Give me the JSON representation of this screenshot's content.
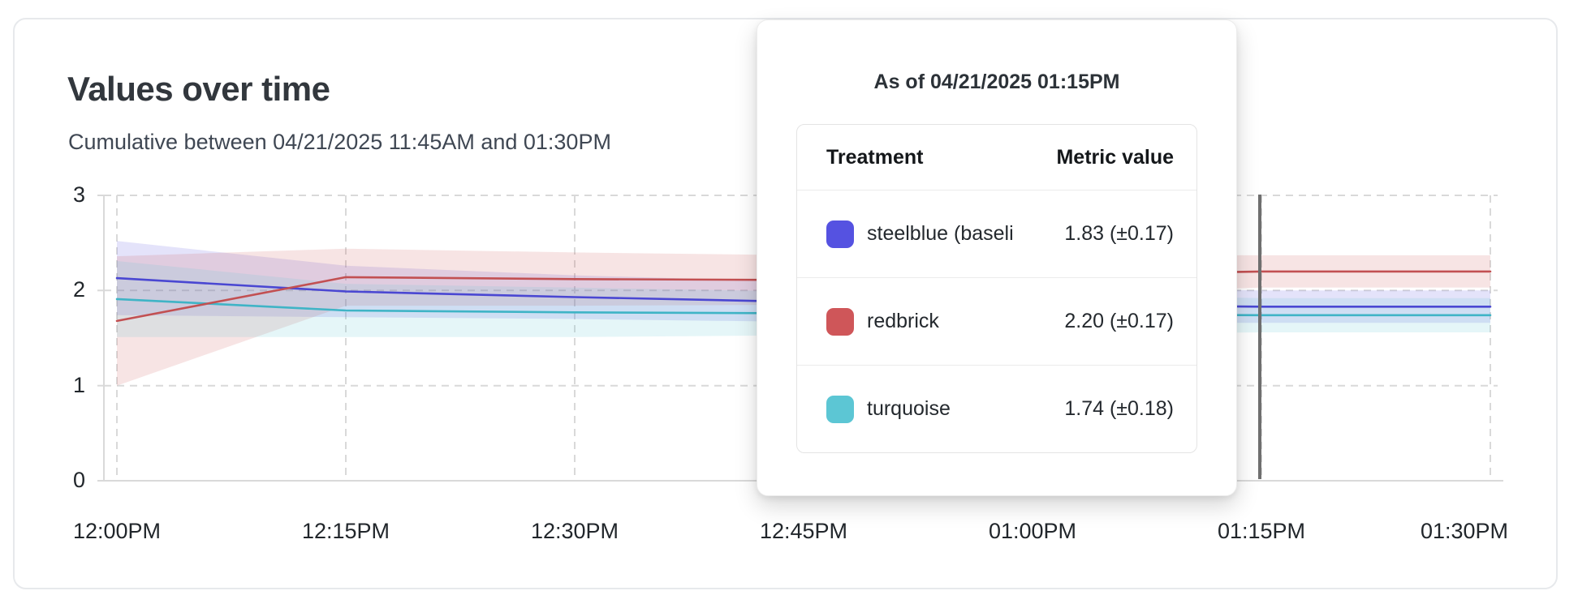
{
  "card": {
    "title": "Values over time",
    "subtitle": "Cumulative between 04/21/2025 11:45AM and 01:30PM"
  },
  "tooltip": {
    "title": "As of 04/21/2025 01:15PM",
    "columns": [
      "Treatment",
      "Metric value"
    ],
    "rows": [
      {
        "label": "steelblue  (baseli",
        "value": "1.83 (±0.17)",
        "color": "#5552e1"
      },
      {
        "label": "redbrick",
        "value": "2.20 (±0.17)",
        "color": "#cf5659"
      },
      {
        "label": "turquoise",
        "value": "1.74 (±0.18)",
        "color": "#5cc6d4"
      }
    ]
  },
  "chart_data": {
    "type": "line",
    "title": "Values over time",
    "subtitle": "Cumulative between 04/21/2025 11:45AM and 01:30PM",
    "xlabel": "",
    "ylabel": "",
    "x": [
      "12:00PM",
      "12:15PM",
      "12:30PM",
      "12:45PM",
      "01:00PM",
      "01:15PM",
      "01:30PM"
    ],
    "y_ticks": [
      0,
      1,
      2,
      3
    ],
    "ylim": [
      0,
      3
    ],
    "grid": true,
    "legend_position": "none",
    "hover_x": "01:15PM",
    "hover_line_color": "#6f6f6f",
    "axis_color": "#d9d9d9",
    "series": [
      {
        "name": "steelblue (baseline)",
        "line_color": "#4a47d2",
        "band_color": "#5552e1",
        "values": [
          2.13,
          1.99,
          1.93,
          1.88,
          1.85,
          1.83,
          1.83
        ],
        "moe": [
          0.39,
          0.27,
          0.23,
          0.21,
          0.19,
          0.17,
          0.17
        ]
      },
      {
        "name": "redbrick",
        "line_color": "#c25052",
        "band_color": "#cf5659",
        "values": [
          1.68,
          2.14,
          2.12,
          2.11,
          2.16,
          2.2,
          2.2
        ],
        "moe": [
          0.68,
          0.3,
          0.28,
          0.26,
          0.21,
          0.17,
          0.17
        ]
      },
      {
        "name": "turquoise",
        "line_color": "#3fb4c6",
        "band_color": "#5cc6d4",
        "values": [
          1.91,
          1.79,
          1.77,
          1.76,
          1.75,
          1.74,
          1.74
        ],
        "moe": [
          0.4,
          0.28,
          0.26,
          0.23,
          0.21,
          0.18,
          0.18
        ]
      }
    ]
  }
}
